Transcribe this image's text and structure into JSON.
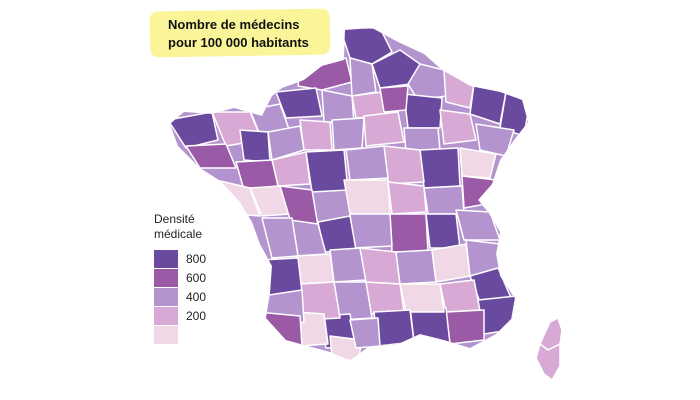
{
  "title": {
    "line1": "Nombre de médecins",
    "line2": "pour 100 000 habitants"
  },
  "legend": {
    "title_line1": "Densité",
    "title_line2": "médicale",
    "items": [
      {
        "label": "800",
        "color": "#6a4a9e"
      },
      {
        "label": "600",
        "color": "#9a5aa6"
      },
      {
        "label": "400",
        "color": "#b394cf"
      },
      {
        "label": "200",
        "color": "#d9a9d6"
      },
      {
        "label": "",
        "color": "#f0d8e6"
      }
    ]
  },
  "colors": {
    "class_800": "#6a4a9e",
    "class_600": "#9a5aa6",
    "class_400": "#b394cf",
    "class_200": "#d9a9d6",
    "class_0": "#f0d8e6",
    "title_background": "#fbf59a"
  }
}
